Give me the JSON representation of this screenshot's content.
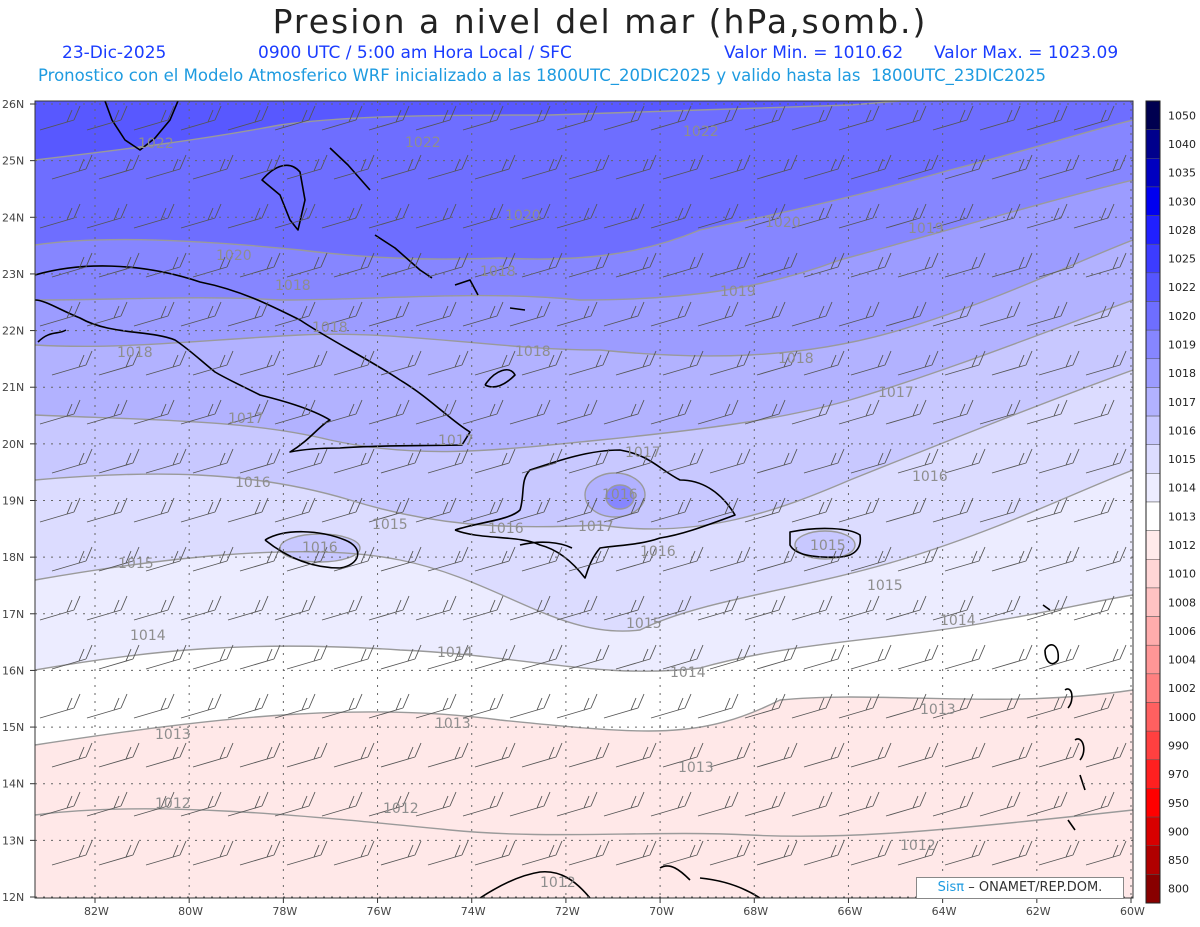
{
  "header": {
    "title": "Presion a nivel del mar (hPa,somb.)",
    "date": "23-Dic-2025",
    "time": "0900 UTC / 5:00 am Hora Local / SFC",
    "min_label": "Valor Min. = 1010.62",
    "max_label": "Valor Max. = 1023.09",
    "subtitle": "Pronostico con el Modelo Atmosferico WRF inicializado a las 1800UTC_20DIC2025 y valido hasta las  1800UTC_23DIC2025"
  },
  "map": {
    "lat_labels": [
      "26N",
      "25N",
      "24N",
      "23N",
      "22N",
      "21N",
      "20N",
      "19N",
      "18N",
      "17N",
      "16N",
      "15N",
      "14N",
      "13N",
      "12N"
    ],
    "lon_labels": [
      "82W",
      "80W",
      "78W",
      "76W",
      "74W",
      "72W",
      "70W",
      "68W",
      "66W",
      "64W",
      "62W",
      "60W"
    ],
    "contour_labels": [
      "1022",
      "1022",
      "1022",
      "1020",
      "1020",
      "1020",
      "1019",
      "1019",
      "1018",
      "1018",
      "1018",
      "1018",
      "1018",
      "1018",
      "1017",
      "1017",
      "1017",
      "1017",
      "1016",
      "1016",
      "1016",
      "1016",
      "1016",
      "1015",
      "1015",
      "1015",
      "1015",
      "1015",
      "1014",
      "1014",
      "1014",
      "1014",
      "1013",
      "1013",
      "1013",
      "1013",
      "1012",
      "1012",
      "1012",
      "1012",
      "1016",
      "1017"
    ],
    "credit_sis": "Sisπ",
    "credit_text": "– ONAMET/REP.DOM."
  },
  "colorbar": {
    "levels": [
      "1050",
      "1040",
      "1035",
      "1030",
      "1028",
      "1025",
      "1022",
      "1020",
      "1019",
      "1018",
      "1017",
      "1016",
      "1015",
      "1014",
      "1013",
      "1012",
      "1010",
      "1008",
      "1006",
      "1004",
      "1002",
      "1000",
      "990",
      "970",
      "950",
      "900",
      "850",
      "800"
    ],
    "colors": [
      "#000050",
      "#00008c",
      "#0000c0",
      "#0000f0",
      "#2020ff",
      "#3c3cff",
      "#5555ff",
      "#6e6eff",
      "#8686ff",
      "#9c9cff",
      "#b2b2ff",
      "#c8c8ff",
      "#dcdcff",
      "#ececff",
      "#ffffff",
      "#ffeaea",
      "#ffd6d6",
      "#ffc2c2",
      "#ffacac",
      "#ff9696",
      "#ff8080",
      "#ff6060",
      "#ff4040",
      "#ff2020",
      "#ff0000",
      "#d80000",
      "#b00000",
      "#880000"
    ]
  }
}
